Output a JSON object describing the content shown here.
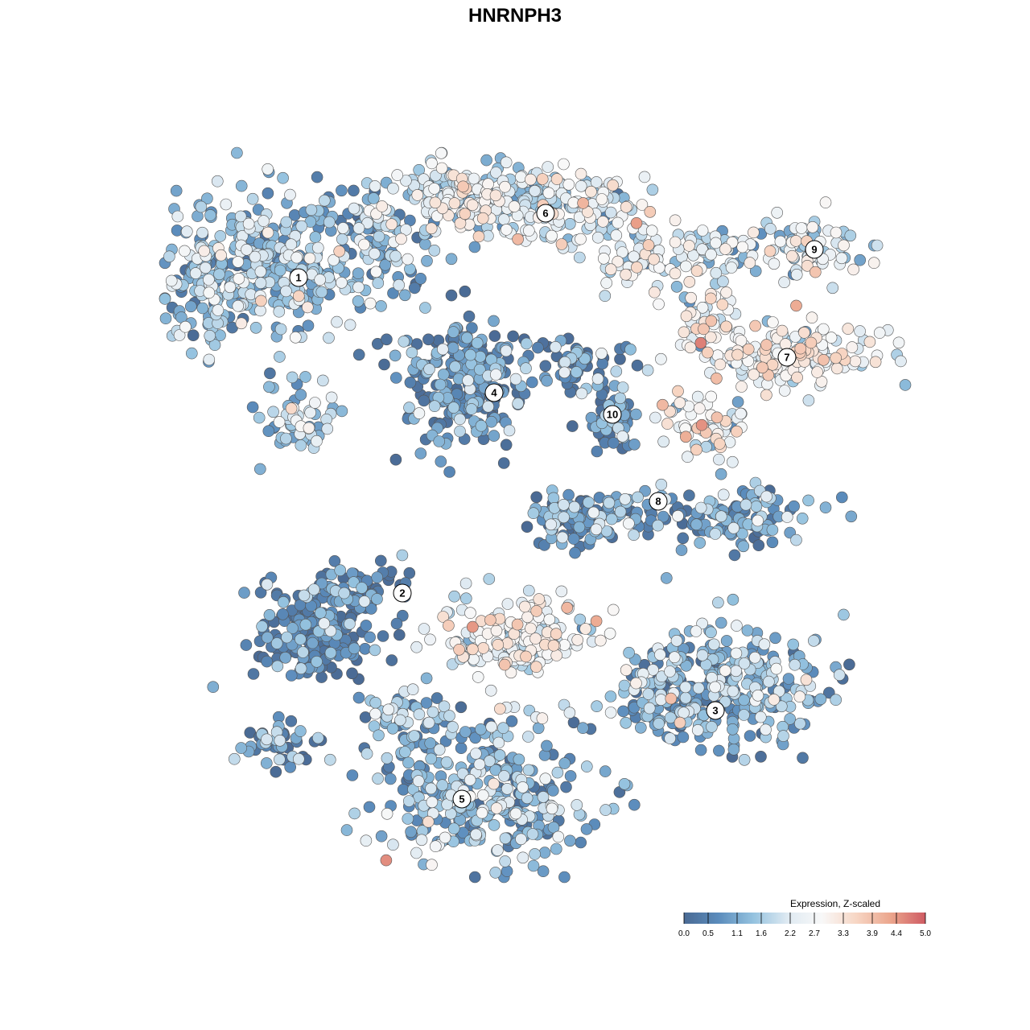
{
  "chart_data": {
    "type": "scatter",
    "title": "HNRNPH3",
    "colormap": [
      "#4a6a94",
      "#5b8cbc",
      "#94c2df",
      "#dfeaf2",
      "#f8f8f8",
      "#f7d6c4",
      "#eba58c",
      "#cf5b63"
    ],
    "point_style": {
      "stroke": "#555555"
    },
    "legend": {
      "title": "Expression, Z-scaled",
      "position": "bottom-right",
      "ticks": [
        "0.0",
        "0.5",
        "1.1",
        "1.6",
        "2.2",
        "2.7",
        "3.3",
        "3.9",
        "4.4",
        "5.0"
      ],
      "range": [
        0.0,
        5.0
      ]
    },
    "clusters": [
      {
        "label": "1",
        "mean_expression": 1.4
      },
      {
        "label": "2",
        "mean_expression": 0.5
      },
      {
        "label": "3",
        "mean_expression": 1.2
      },
      {
        "label": "4",
        "mean_expression": 0.6
      },
      {
        "label": "5",
        "mean_expression": 1.3
      },
      {
        "label": "6",
        "mean_expression": 2.2
      },
      {
        "label": "7",
        "mean_expression": 2.6
      },
      {
        "label": "8",
        "mean_expression": 0.9
      },
      {
        "label": "9",
        "mean_expression": 2.0
      },
      {
        "label": "10",
        "mean_expression": 0.6
      }
    ]
  }
}
